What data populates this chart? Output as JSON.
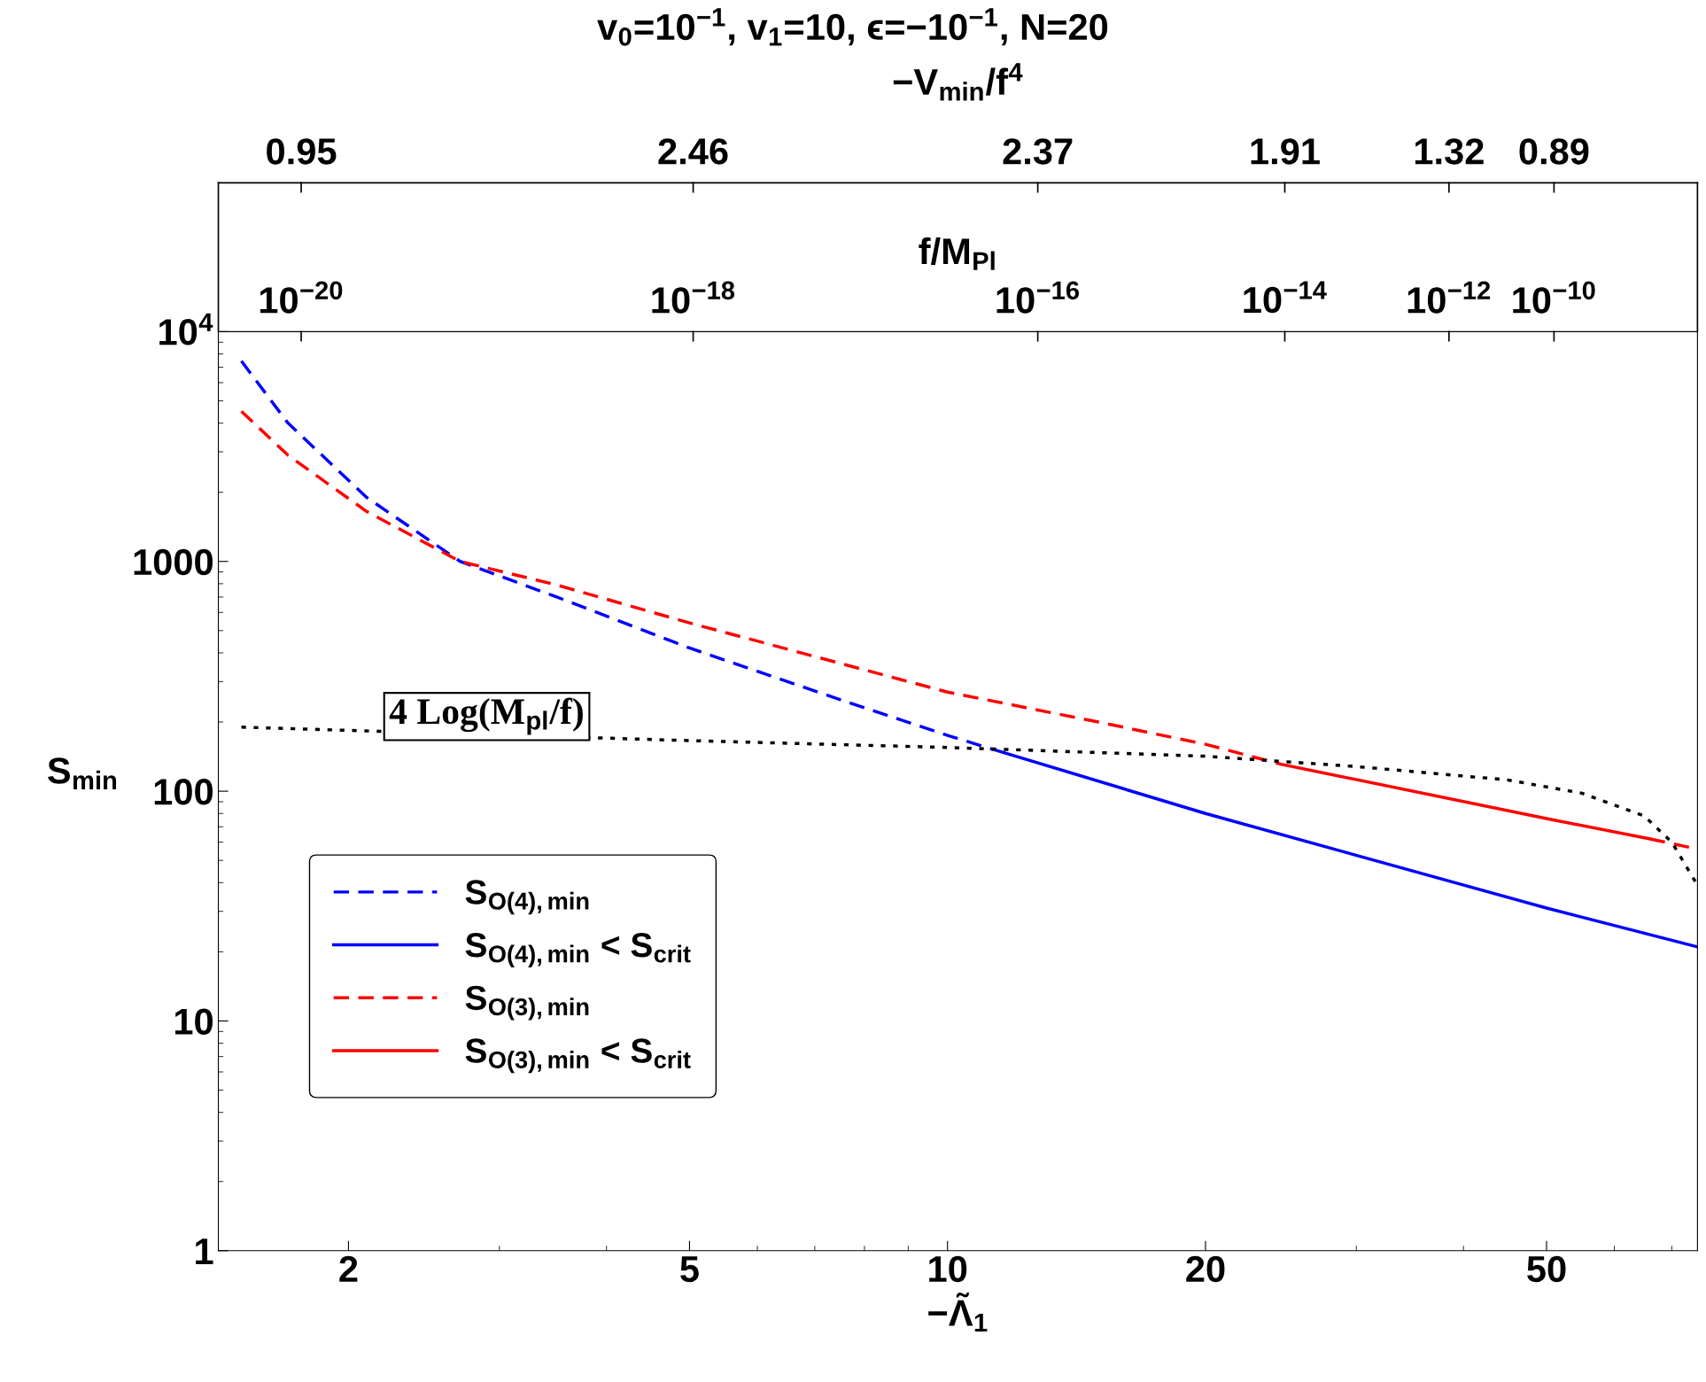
{
  "chart_data": {
    "type": "line",
    "title": "v$_{0}$=10$^{−1}$, v$_{1}$=10, ϵ=−10$^{−1}$, N=20",
    "xlabel": "−Λ̃$_{1}$",
    "ylabel": "S$_{min}$",
    "x2label": "f/M$_{Pl}$",
    "log": "xy",
    "xlim": [
      1.41,
      75
    ],
    "ylim": [
      1,
      10000
    ],
    "xticks": [
      2,
      5,
      10,
      20,
      50
    ],
    "yticks": [
      1,
      10,
      100,
      1000,
      {
        "value": 10000,
        "label": "10$^{4}$"
      }
    ],
    "legend": "left",
    "grid": false,
    "annotations": [
      {
        "text": "4 Log(M$_{pl}$/f)",
        "x": 2.9,
        "y": 175
      },
      "−V$_{min}$/f$^{4}$",
      "10$^{−20}$",
      "10$^{−18}$",
      "10$^{−16}$",
      "10$^{−14}$",
      "10$^{−12}$",
      "10$^{−10}$",
      "0.95",
      "2.46",
      "2.37",
      "1.91",
      "1.32",
      "0.89"
    ],
    "series": [
      {
        "name": "S$_{O(4),min}$",
        "color": "#0000ff",
        "line_style": "dashed",
        "x": [
          1.5,
          1.7,
          2.1,
          2.7,
          3.5,
          5,
          7.5,
          10,
          11.3
        ],
        "values": [
          7450,
          4000,
          1900,
          1000,
          700,
          420,
          250,
          175,
          152
        ]
      },
      {
        "name": "S$_{O(4),min}$ < S$_{crit}$",
        "color": "#0000ff",
        "line_style": "solid",
        "x": [
          11.3,
          20,
          50,
          75
        ],
        "values": [
          152,
          80,
          31,
          21
        ]
      },
      {
        "name": "S$_{O(3),min}$",
        "color": "#ff0000",
        "line_style": "dashed",
        "x": [
          1.5,
          1.7,
          2.1,
          2.7,
          3.5,
          5,
          7.5,
          10,
          15,
          20,
          24.5
        ],
        "values": [
          4500,
          2900,
          1650,
          1000,
          790,
          540,
          360,
          270,
          200,
          160,
          131
        ]
      },
      {
        "name": "S$_{O(3),min}$ < S$_{crit}$",
        "color": "#ff0000",
        "line_style": "solid",
        "x": [
          24.5,
          50,
          66
        ],
        "values": [
          131,
          76,
          62
        ]
      },
      {
        "color": "#ff0000",
        "line_style": "dashed",
        "x": [
          66,
          75
        ],
        "values": [
          62,
          56
        ]
      },
      {
        "color": "#000000",
        "line_style": "dotted",
        "x": [
          1.5,
          5,
          10,
          20,
          30,
          45,
          55,
          65,
          70,
          75
        ],
        "values": [
          190,
          166,
          155,
          142,
          128,
          112,
          98,
          78,
          60,
          39
        ]
      }
    ]
  }
}
